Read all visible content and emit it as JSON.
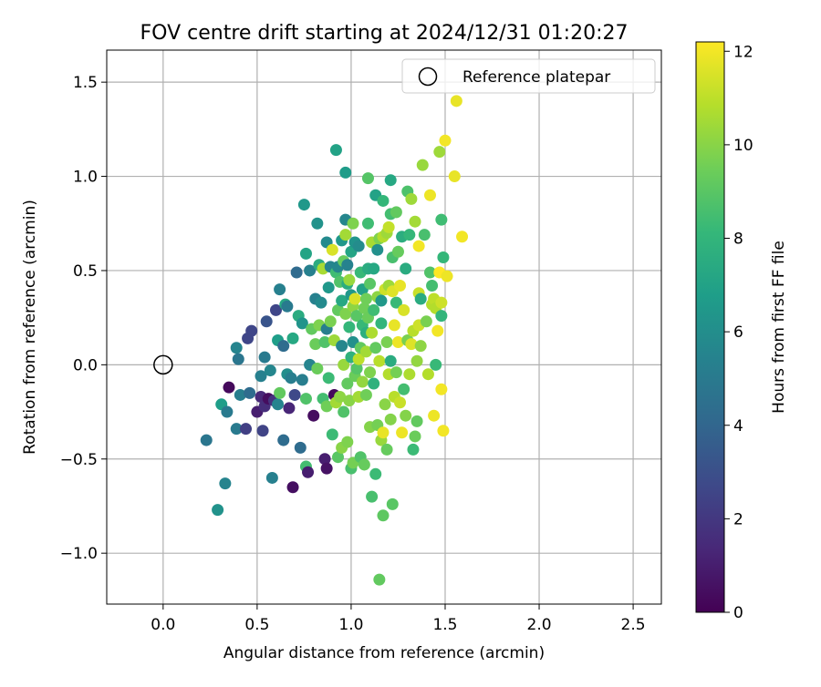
{
  "chart_data": {
    "type": "scatter",
    "title": "FOV centre drift starting at 2024/12/31 01:20:27",
    "xlabel": "Angular distance from reference (arcmin)",
    "ylabel": "Rotation from reference (arcmin)",
    "xlim": [
      -0.3,
      2.65
    ],
    "ylim": [
      -1.27,
      1.67
    ],
    "xticks": [
      0.0,
      0.5,
      1.0,
      1.5,
      2.0,
      2.5
    ],
    "xtick_labels": [
      "0.0",
      "0.5",
      "1.0",
      "1.5",
      "2.0",
      "2.5"
    ],
    "yticks": [
      -1.0,
      -0.5,
      0.0,
      0.5,
      1.0,
      1.5
    ],
    "ytick_labels": [
      "−1.0",
      "−0.5",
      "0.0",
      "0.5",
      "1.0",
      "1.5"
    ],
    "grid": true,
    "legend": {
      "position": "top-right",
      "entries": [
        "Reference platepar"
      ]
    },
    "reference_point": {
      "x": 0.0,
      "y": 0.0
    },
    "colorbar": {
      "label": "Hours from first FF file",
      "min": 0,
      "max": 12.2,
      "ticks": [
        0,
        2,
        4,
        6,
        8,
        10,
        12
      ],
      "tick_labels": [
        "0",
        "2",
        "4",
        "6",
        "8",
        "10",
        "12"
      ],
      "colormap": "viridis"
    },
    "colormap_stops": [
      "#440154",
      "#482878",
      "#3e4989",
      "#31688e",
      "#26828e",
      "#1f9e89",
      "#35b779",
      "#6ece58",
      "#b5de2b",
      "#fde725"
    ],
    "points": [
      {
        "x": 0.23,
        "y": -0.4,
        "t": 4.8
      },
      {
        "x": 0.29,
        "y": -0.77,
        "t": 6.2
      },
      {
        "x": 0.31,
        "y": -0.21,
        "t": 6.8
      },
      {
        "x": 0.33,
        "y": -0.63,
        "t": 5.5
      },
      {
        "x": 0.34,
        "y": -0.25,
        "t": 5.0
      },
      {
        "x": 0.35,
        "y": -0.12,
        "t": 0.3
      },
      {
        "x": 0.39,
        "y": -0.34,
        "t": 5.0
      },
      {
        "x": 0.39,
        "y": 0.09,
        "t": 5.5
      },
      {
        "x": 0.4,
        "y": 0.03,
        "t": 4.8
      },
      {
        "x": 0.41,
        "y": -0.16,
        "t": 5.2
      },
      {
        "x": 0.44,
        "y": -0.34,
        "t": 2.3
      },
      {
        "x": 0.45,
        "y": 0.14,
        "t": 2.6
      },
      {
        "x": 0.46,
        "y": -0.15,
        "t": 4.3
      },
      {
        "x": 0.47,
        "y": 0.18,
        "t": 2.6
      },
      {
        "x": 0.5,
        "y": -0.25,
        "t": 1.0
      },
      {
        "x": 0.52,
        "y": -0.17,
        "t": 1.4
      },
      {
        "x": 0.52,
        "y": -0.06,
        "t": 5.3
      },
      {
        "x": 0.53,
        "y": -0.35,
        "t": 2.5
      },
      {
        "x": 0.54,
        "y": 0.04,
        "t": 5.0
      },
      {
        "x": 0.54,
        "y": -0.22,
        "t": 1.6
      },
      {
        "x": 0.55,
        "y": 0.23,
        "t": 3.2
      },
      {
        "x": 0.56,
        "y": -0.18,
        "t": 0.4
      },
      {
        "x": 0.57,
        "y": -0.03,
        "t": 5.6
      },
      {
        "x": 0.58,
        "y": -0.6,
        "t": 5.3
      },
      {
        "x": 0.59,
        "y": -0.19,
        "t": 1.8
      },
      {
        "x": 0.6,
        "y": 0.29,
        "t": 2.6
      },
      {
        "x": 0.61,
        "y": -0.21,
        "t": 5.5
      },
      {
        "x": 0.61,
        "y": 0.13,
        "t": 6.8
      },
      {
        "x": 0.62,
        "y": 0.4,
        "t": 5.3
      },
      {
        "x": 0.62,
        "y": -0.15,
        "t": 9.2
      },
      {
        "x": 0.64,
        "y": 0.1,
        "t": 4.3
      },
      {
        "x": 0.64,
        "y": -0.4,
        "t": 4.3
      },
      {
        "x": 0.65,
        "y": 0.32,
        "t": 7.3
      },
      {
        "x": 0.66,
        "y": -0.05,
        "t": 6.0
      },
      {
        "x": 0.66,
        "y": 0.31,
        "t": 5.0
      },
      {
        "x": 0.67,
        "y": -0.23,
        "t": 1.3
      },
      {
        "x": 0.68,
        "y": -0.07,
        "t": 5.2
      },
      {
        "x": 0.69,
        "y": -0.65,
        "t": 0.5
      },
      {
        "x": 0.69,
        "y": 0.14,
        "t": 7.3
      },
      {
        "x": 0.7,
        "y": -0.16,
        "t": 2.7
      },
      {
        "x": 0.71,
        "y": 0.49,
        "t": 4.2
      },
      {
        "x": 0.72,
        "y": 0.26,
        "t": 7.5
      },
      {
        "x": 0.73,
        "y": -0.44,
        "t": 4.3
      },
      {
        "x": 0.74,
        "y": 0.22,
        "t": 6.3
      },
      {
        "x": 0.74,
        "y": -0.08,
        "t": 5.2
      },
      {
        "x": 0.75,
        "y": 0.85,
        "t": 6.5
      },
      {
        "x": 0.76,
        "y": 0.59,
        "t": 7.1
      },
      {
        "x": 0.76,
        "y": -0.54,
        "t": 8.5
      },
      {
        "x": 0.76,
        "y": -0.18,
        "t": 8.8
      },
      {
        "x": 0.77,
        "y": -0.57,
        "t": 1.0
      },
      {
        "x": 0.78,
        "y": 0.5,
        "t": 5.3
      },
      {
        "x": 0.78,
        "y": 0.0,
        "t": 5.5
      },
      {
        "x": 0.79,
        "y": 0.19,
        "t": 9.2
      },
      {
        "x": 0.8,
        "y": -0.27,
        "t": 0.4
      },
      {
        "x": 0.81,
        "y": 0.35,
        "t": 5.3
      },
      {
        "x": 0.81,
        "y": 0.11,
        "t": 9.4
      },
      {
        "x": 0.82,
        "y": 0.75,
        "t": 6.2
      },
      {
        "x": 0.82,
        "y": -0.02,
        "t": 9.4
      },
      {
        "x": 0.83,
        "y": 0.21,
        "t": 9.8
      },
      {
        "x": 0.83,
        "y": 0.53,
        "t": 7.5
      },
      {
        "x": 0.84,
        "y": 0.33,
        "t": 5.8
      },
      {
        "x": 0.85,
        "y": -0.18,
        "t": 8.5
      },
      {
        "x": 0.85,
        "y": 0.51,
        "t": 10.6
      },
      {
        "x": 0.86,
        "y": -0.5,
        "t": 1.0
      },
      {
        "x": 0.86,
        "y": 0.12,
        "t": 8.8
      },
      {
        "x": 0.87,
        "y": -0.22,
        "t": 9.5
      },
      {
        "x": 0.87,
        "y": 0.19,
        "t": 5.2
      },
      {
        "x": 0.87,
        "y": 0.65,
        "t": 5.8
      },
      {
        "x": 0.87,
        "y": -0.55,
        "t": 0.6
      },
      {
        "x": 0.88,
        "y": 0.41,
        "t": 6.5
      },
      {
        "x": 0.88,
        "y": -0.07,
        "t": 8.3
      },
      {
        "x": 0.89,
        "y": 0.23,
        "t": 9.7
      },
      {
        "x": 0.89,
        "y": 0.52,
        "t": 5.5
      },
      {
        "x": 0.9,
        "y": -0.37,
        "t": 8.3
      },
      {
        "x": 0.9,
        "y": 0.61,
        "t": 11.5
      },
      {
        "x": 0.91,
        "y": 0.13,
        "t": 10.4
      },
      {
        "x": 0.91,
        "y": -0.16,
        "t": 0.3
      },
      {
        "x": 0.92,
        "y": 0.49,
        "t": 8.4
      },
      {
        "x": 0.92,
        "y": 1.14,
        "t": 7.0
      },
      {
        "x": 0.92,
        "y": -0.2,
        "t": 10.5
      },
      {
        "x": 0.93,
        "y": -0.49,
        "t": 9.0
      },
      {
        "x": 0.93,
        "y": 0.29,
        "t": 9.2
      },
      {
        "x": 0.93,
        "y": 0.52,
        "t": 5.6
      },
      {
        "x": 0.94,
        "y": 0.44,
        "t": 8.8
      },
      {
        "x": 0.94,
        "y": -0.17,
        "t": 10.1
      },
      {
        "x": 0.95,
        "y": 0.1,
        "t": 5.6
      },
      {
        "x": 0.95,
        "y": 0.34,
        "t": 7.3
      },
      {
        "x": 0.95,
        "y": 0.66,
        "t": 6.5
      },
      {
        "x": 0.95,
        "y": -0.44,
        "t": 10.0
      },
      {
        "x": 0.96,
        "y": 0.55,
        "t": 9.3
      },
      {
        "x": 0.96,
        "y": -0.25,
        "t": 8.8
      },
      {
        "x": 0.96,
        "y": 0.0,
        "t": 10.3
      },
      {
        "x": 0.97,
        "y": 0.77,
        "t": 5.6
      },
      {
        "x": 0.97,
        "y": 0.27,
        "t": 9.8
      },
      {
        "x": 0.97,
        "y": 1.02,
        "t": 6.7
      },
      {
        "x": 0.97,
        "y": 0.69,
        "t": 10.5
      },
      {
        "x": 0.98,
        "y": 0.43,
        "t": 7.6
      },
      {
        "x": 0.98,
        "y": -0.1,
        "t": 9.2
      },
      {
        "x": 0.98,
        "y": 0.53,
        "t": 5.4
      },
      {
        "x": 0.98,
        "y": -0.41,
        "t": 9.8
      },
      {
        "x": 0.99,
        "y": 0.2,
        "t": 8.1
      },
      {
        "x": 0.99,
        "y": -0.19,
        "t": 10.0
      },
      {
        "x": 0.99,
        "y": 0.45,
        "t": 10.3
      },
      {
        "x": 1.0,
        "y": 0.37,
        "t": 6.5
      },
      {
        "x": 1.0,
        "y": 0.04,
        "t": 7.8
      },
      {
        "x": 1.0,
        "y": -0.55,
        "t": 8.6
      },
      {
        "x": 1.0,
        "y": 0.6,
        "t": 7.1
      },
      {
        "x": 1.01,
        "y": 0.75,
        "t": 9.8
      },
      {
        "x": 1.01,
        "y": 0.31,
        "t": 10.1
      },
      {
        "x": 1.01,
        "y": -0.52,
        "t": 9.6
      },
      {
        "x": 1.01,
        "y": 0.12,
        "t": 6.1
      },
      {
        "x": 1.02,
        "y": 0.35,
        "t": 11.5
      },
      {
        "x": 1.02,
        "y": -0.06,
        "t": 9.4
      },
      {
        "x": 1.02,
        "y": 0.65,
        "t": 6.3
      },
      {
        "x": 1.03,
        "y": -0.02,
        "t": 8.9
      },
      {
        "x": 1.03,
        "y": 0.26,
        "t": 9.0
      },
      {
        "x": 1.04,
        "y": -0.17,
        "t": 10.5
      },
      {
        "x": 1.04,
        "y": 0.63,
        "t": 5.9
      },
      {
        "x": 1.04,
        "y": 0.03,
        "t": 11.0
      },
      {
        "x": 1.05,
        "y": 0.49,
        "t": 8.2
      },
      {
        "x": 1.05,
        "y": 0.09,
        "t": 9.2
      },
      {
        "x": 1.05,
        "y": -0.49,
        "t": 8.8
      },
      {
        "x": 1.06,
        "y": 0.4,
        "t": 7.0
      },
      {
        "x": 1.06,
        "y": -0.09,
        "t": 10.2
      },
      {
        "x": 1.06,
        "y": 0.21,
        "t": 8.2
      },
      {
        "x": 1.07,
        "y": 0.3,
        "t": 9.5
      },
      {
        "x": 1.07,
        "y": -0.53,
        "t": 9.3
      },
      {
        "x": 1.08,
        "y": 0.17,
        "t": 7.7
      },
      {
        "x": 1.08,
        "y": 0.35,
        "t": 9.5
      },
      {
        "x": 1.08,
        "y": 0.07,
        "t": 10.5
      },
      {
        "x": 1.08,
        "y": -0.16,
        "t": 9.5
      },
      {
        "x": 1.09,
        "y": 0.51,
        "t": 7.5
      },
      {
        "x": 1.09,
        "y": 0.75,
        "t": 8.4
      },
      {
        "x": 1.09,
        "y": 0.99,
        "t": 8.9
      },
      {
        "x": 1.09,
        "y": 0.25,
        "t": 9.4
      },
      {
        "x": 1.1,
        "y": -0.04,
        "t": 9.8
      },
      {
        "x": 1.1,
        "y": 0.43,
        "t": 9.0
      },
      {
        "x": 1.1,
        "y": -0.33,
        "t": 9.9
      },
      {
        "x": 1.11,
        "y": -0.7,
        "t": 8.6
      },
      {
        "x": 1.11,
        "y": 0.17,
        "t": 10.7
      },
      {
        "x": 1.11,
        "y": 0.65,
        "t": 10.6
      },
      {
        "x": 1.12,
        "y": -0.1,
        "t": 7.8
      },
      {
        "x": 1.12,
        "y": 0.29,
        "t": 8.4
      },
      {
        "x": 1.12,
        "y": 0.51,
        "t": 7.3
      },
      {
        "x": 1.13,
        "y": 0.09,
        "t": 9.2
      },
      {
        "x": 1.13,
        "y": 0.9,
        "t": 7.0
      },
      {
        "x": 1.13,
        "y": -0.58,
        "t": 8.3
      },
      {
        "x": 1.14,
        "y": 0.36,
        "t": 10.1
      },
      {
        "x": 1.14,
        "y": -0.32,
        "t": 9.6
      },
      {
        "x": 1.14,
        "y": 0.61,
        "t": 6.1
      },
      {
        "x": 1.15,
        "y": 0.67,
        "t": 9.8
      },
      {
        "x": 1.15,
        "y": -1.14,
        "t": 9.2
      },
      {
        "x": 1.15,
        "y": 0.02,
        "t": 10.9
      },
      {
        "x": 1.16,
        "y": 0.34,
        "t": 6.5
      },
      {
        "x": 1.16,
        "y": -0.4,
        "t": 10.3
      },
      {
        "x": 1.16,
        "y": 0.22,
        "t": 8.0
      },
      {
        "x": 1.17,
        "y": -0.8,
        "t": 9.1
      },
      {
        "x": 1.17,
        "y": 0.68,
        "t": 10.8
      },
      {
        "x": 1.17,
        "y": 0.87,
        "t": 8.1
      },
      {
        "x": 1.17,
        "y": -0.36,
        "t": 11.8
      },
      {
        "x": 1.18,
        "y": -0.21,
        "t": 10.0
      },
      {
        "x": 1.18,
        "y": 0.4,
        "t": 11.3
      },
      {
        "x": 1.19,
        "y": -0.45,
        "t": 9.3
      },
      {
        "x": 1.19,
        "y": 0.7,
        "t": 10.4
      },
      {
        "x": 1.19,
        "y": 0.12,
        "t": 9.7
      },
      {
        "x": 1.2,
        "y": 0.73,
        "t": 11.1
      },
      {
        "x": 1.2,
        "y": -0.05,
        "t": 10.8
      },
      {
        "x": 1.2,
        "y": 0.42,
        "t": 10.4
      },
      {
        "x": 1.21,
        "y": 0.98,
        "t": 7.3
      },
      {
        "x": 1.21,
        "y": 0.02,
        "t": 7.5
      },
      {
        "x": 1.21,
        "y": -0.29,
        "t": 9.9
      },
      {
        "x": 1.21,
        "y": 0.8,
        "t": 8.5
      },
      {
        "x": 1.22,
        "y": 0.57,
        "t": 8.6
      },
      {
        "x": 1.22,
        "y": -0.74,
        "t": 9.0
      },
      {
        "x": 1.22,
        "y": 0.39,
        "t": 11.6
      },
      {
        "x": 1.23,
        "y": 0.21,
        "t": 11.8
      },
      {
        "x": 1.23,
        "y": -0.17,
        "t": 10.9
      },
      {
        "x": 1.24,
        "y": 0.81,
        "t": 9.2
      },
      {
        "x": 1.24,
        "y": 0.33,
        "t": 8.2
      },
      {
        "x": 1.24,
        "y": -0.04,
        "t": 9.6
      },
      {
        "x": 1.25,
        "y": 0.6,
        "t": 9.3
      },
      {
        "x": 1.25,
        "y": 0.12,
        "t": 11.9
      },
      {
        "x": 1.26,
        "y": -0.2,
        "t": 11.2
      },
      {
        "x": 1.26,
        "y": 0.42,
        "t": 11.8
      },
      {
        "x": 1.27,
        "y": 0.68,
        "t": 7.6
      },
      {
        "x": 1.27,
        "y": -0.36,
        "t": 11.9
      },
      {
        "x": 1.28,
        "y": 0.29,
        "t": 11.5
      },
      {
        "x": 1.28,
        "y": -0.13,
        "t": 8.5
      },
      {
        "x": 1.29,
        "y": 0.51,
        "t": 7.5
      },
      {
        "x": 1.29,
        "y": -0.27,
        "t": 9.9
      },
      {
        "x": 1.3,
        "y": 0.92,
        "t": 8.7
      },
      {
        "x": 1.3,
        "y": 0.13,
        "t": 9.7
      },
      {
        "x": 1.31,
        "y": -0.05,
        "t": 10.7
      },
      {
        "x": 1.31,
        "y": 0.69,
        "t": 8.1
      },
      {
        "x": 1.32,
        "y": 0.11,
        "t": 11.6
      },
      {
        "x": 1.32,
        "y": 0.88,
        "t": 10.4
      },
      {
        "x": 1.33,
        "y": -0.45,
        "t": 8.3
      },
      {
        "x": 1.33,
        "y": 0.18,
        "t": 10.9
      },
      {
        "x": 1.34,
        "y": 0.76,
        "t": 10.5
      },
      {
        "x": 1.34,
        "y": -0.38,
        "t": 9.4
      },
      {
        "x": 1.35,
        "y": 0.02,
        "t": 10.2
      },
      {
        "x": 1.35,
        "y": -0.3,
        "t": 9.2
      },
      {
        "x": 1.36,
        "y": 0.21,
        "t": 11.3
      },
      {
        "x": 1.36,
        "y": 0.38,
        "t": 11.2
      },
      {
        "x": 1.36,
        "y": 0.63,
        "t": 12.0
      },
      {
        "x": 1.37,
        "y": 0.35,
        "t": 7.5
      },
      {
        "x": 1.37,
        "y": 0.1,
        "t": 10.1
      },
      {
        "x": 1.38,
        "y": 1.06,
        "t": 10.3
      },
      {
        "x": 1.39,
        "y": 0.69,
        "t": 8.6
      },
      {
        "x": 1.4,
        "y": 0.23,
        "t": 9.7
      },
      {
        "x": 1.41,
        "y": -0.05,
        "t": 10.8
      },
      {
        "x": 1.42,
        "y": 0.9,
        "t": 11.9
      },
      {
        "x": 1.42,
        "y": 0.49,
        "t": 8.8
      },
      {
        "x": 1.43,
        "y": 0.32,
        "t": 10.8
      },
      {
        "x": 1.43,
        "y": 0.42,
        "t": 8.5
      },
      {
        "x": 1.44,
        "y": -0.27,
        "t": 11.9
      },
      {
        "x": 1.44,
        "y": 0.35,
        "t": 11.0
      },
      {
        "x": 1.45,
        "y": 0.0,
        "t": 8.2
      },
      {
        "x": 1.45,
        "y": 0.3,
        "t": 10.8
      },
      {
        "x": 1.46,
        "y": 0.18,
        "t": 12.0
      },
      {
        "x": 1.47,
        "y": 0.49,
        "t": 12.2
      },
      {
        "x": 1.47,
        "y": 1.13,
        "t": 10.4
      },
      {
        "x": 1.48,
        "y": 0.33,
        "t": 11.3
      },
      {
        "x": 1.48,
        "y": -0.13,
        "t": 12.0
      },
      {
        "x": 1.48,
        "y": 0.26,
        "t": 8.0
      },
      {
        "x": 1.48,
        "y": 0.77,
        "t": 8.4
      },
      {
        "x": 1.49,
        "y": 0.57,
        "t": 8.1
      },
      {
        "x": 1.49,
        "y": -0.35,
        "t": 12.0
      },
      {
        "x": 1.5,
        "y": 1.19,
        "t": 12.0
      },
      {
        "x": 1.51,
        "y": 0.47,
        "t": 11.9
      },
      {
        "x": 1.55,
        "y": 1.0,
        "t": 11.8
      },
      {
        "x": 1.56,
        "y": 1.4,
        "t": 11.8
      },
      {
        "x": 1.59,
        "y": 0.68,
        "t": 12.0
      }
    ]
  }
}
